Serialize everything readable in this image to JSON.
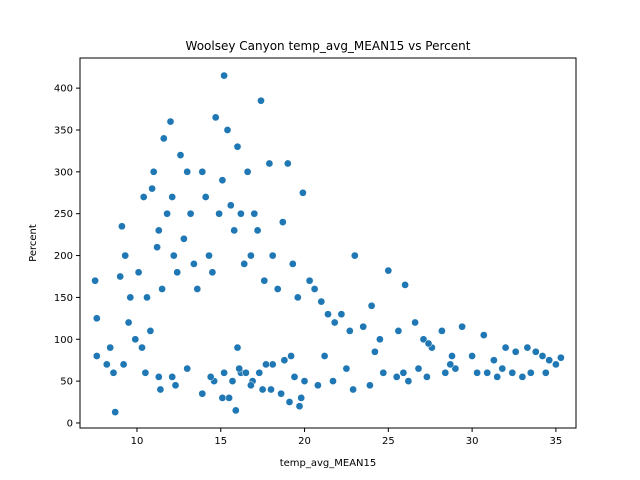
{
  "chart_data": {
    "type": "scatter",
    "title": "Woolsey Canyon temp_avg_MEAN15 vs Percent",
    "xlabel": "temp_avg_MEAN15",
    "ylabel": "Percent",
    "xlim": [
      6.6,
      36.2
    ],
    "ylim": [
      -6,
      436
    ],
    "xticks": [
      10,
      15,
      20,
      25,
      30,
      35
    ],
    "yticks": [
      0,
      50,
      100,
      150,
      200,
      250,
      300,
      350,
      400
    ],
    "grid": false,
    "legend": "none",
    "color": "#1f77b4",
    "series": [
      {
        "x": [
          7.5,
          7.6,
          7.6,
          8.2,
          8.4,
          8.6,
          9.0,
          9.1,
          9.3,
          9.5,
          9.6,
          9.9,
          10.1,
          10.3,
          10.4,
          10.6,
          10.8,
          10.9,
          11.0,
          11.2,
          11.3,
          11.5,
          11.6,
          11.8,
          12.0,
          12.1,
          12.2,
          12.4,
          12.6,
          12.8,
          13.0,
          13.2,
          13.4,
          13.6,
          13.9,
          14.1,
          14.3,
          14.5,
          14.7,
          14.9,
          15.1,
          15.2,
          15.4,
          15.6,
          15.8,
          16.0,
          16.2,
          16.4,
          16.6,
          16.8,
          17.0,
          17.2,
          17.4,
          17.6,
          17.9,
          18.1,
          18.4,
          18.7,
          19.0,
          19.3,
          19.6,
          19.9,
          20.3,
          20.6,
          21.0,
          21.4,
          21.8,
          22.2,
          22.7,
          23.0,
          23.5,
          24.0,
          24.5,
          25.0,
          25.6,
          26.0,
          26.6,
          27.1,
          27.6,
          28.2,
          28.8,
          29.4,
          30.0,
          30.7,
          31.3,
          32.0,
          32.6,
          33.3,
          33.8,
          34.2,
          34.6,
          35.0,
          35.3,
          15.2,
          17.3,
          16.9,
          12.1,
          12.3,
          11.4,
          11.3,
          13.9,
          15.5,
          16.2,
          18.0,
          19.1,
          19.8,
          14.6,
          16.8,
          17.5,
          18.6,
          19.4,
          20.0,
          20.8,
          21.7,
          22.9,
          23.9,
          25.5,
          25.9,
          26.2,
          27.3,
          28.4,
          29.0,
          30.9,
          31.5,
          32.4,
          33.0,
          34.4,
          15.7,
          16.1,
          18.1,
          19.2,
          16.0,
          24.2,
          27.4,
          15.9,
          19.7,
          15.1,
          8.7,
          9.2,
          10.5,
          13.0,
          14.4,
          16.5,
          17.7,
          18.8,
          21.2,
          22.5,
          24.7,
          26.8,
          28.7,
          30.3,
          31.8,
          33.5
        ],
        "y": [
          170,
          125,
          80,
          70,
          90,
          60,
          175,
          235,
          200,
          120,
          150,
          100,
          180,
          90,
          270,
          150,
          110,
          280,
          300,
          210,
          230,
          160,
          340,
          250,
          360,
          270,
          200,
          180,
          320,
          220,
          300,
          250,
          190,
          160,
          300,
          270,
          200,
          180,
          365,
          250,
          290,
          415,
          350,
          260,
          230,
          330,
          250,
          190,
          300,
          200,
          250,
          230,
          385,
          170,
          310,
          200,
          160,
          240,
          310,
          190,
          150,
          275,
          170,
          160,
          145,
          130,
          120,
          130,
          110,
          200,
          115,
          140,
          100,
          182,
          110,
          165,
          120,
          100,
          90,
          110,
          80,
          115,
          80,
          105,
          75,
          90,
          85,
          90,
          85,
          80,
          75,
          70,
          78,
          60,
          60,
          50,
          55,
          45,
          40,
          55,
          35,
          30,
          60,
          40,
          25,
          30,
          50,
          45,
          40,
          35,
          55,
          50,
          45,
          50,
          40,
          45,
          55,
          60,
          50,
          55,
          60,
          65,
          60,
          55,
          60,
          55,
          60,
          50,
          65,
          70,
          80,
          90,
          85,
          95,
          15,
          20,
          30,
          13,
          70,
          60,
          65,
          55,
          60,
          70,
          75,
          80,
          65,
          60,
          65,
          70,
          60,
          65,
          60
        ]
      }
    ]
  }
}
